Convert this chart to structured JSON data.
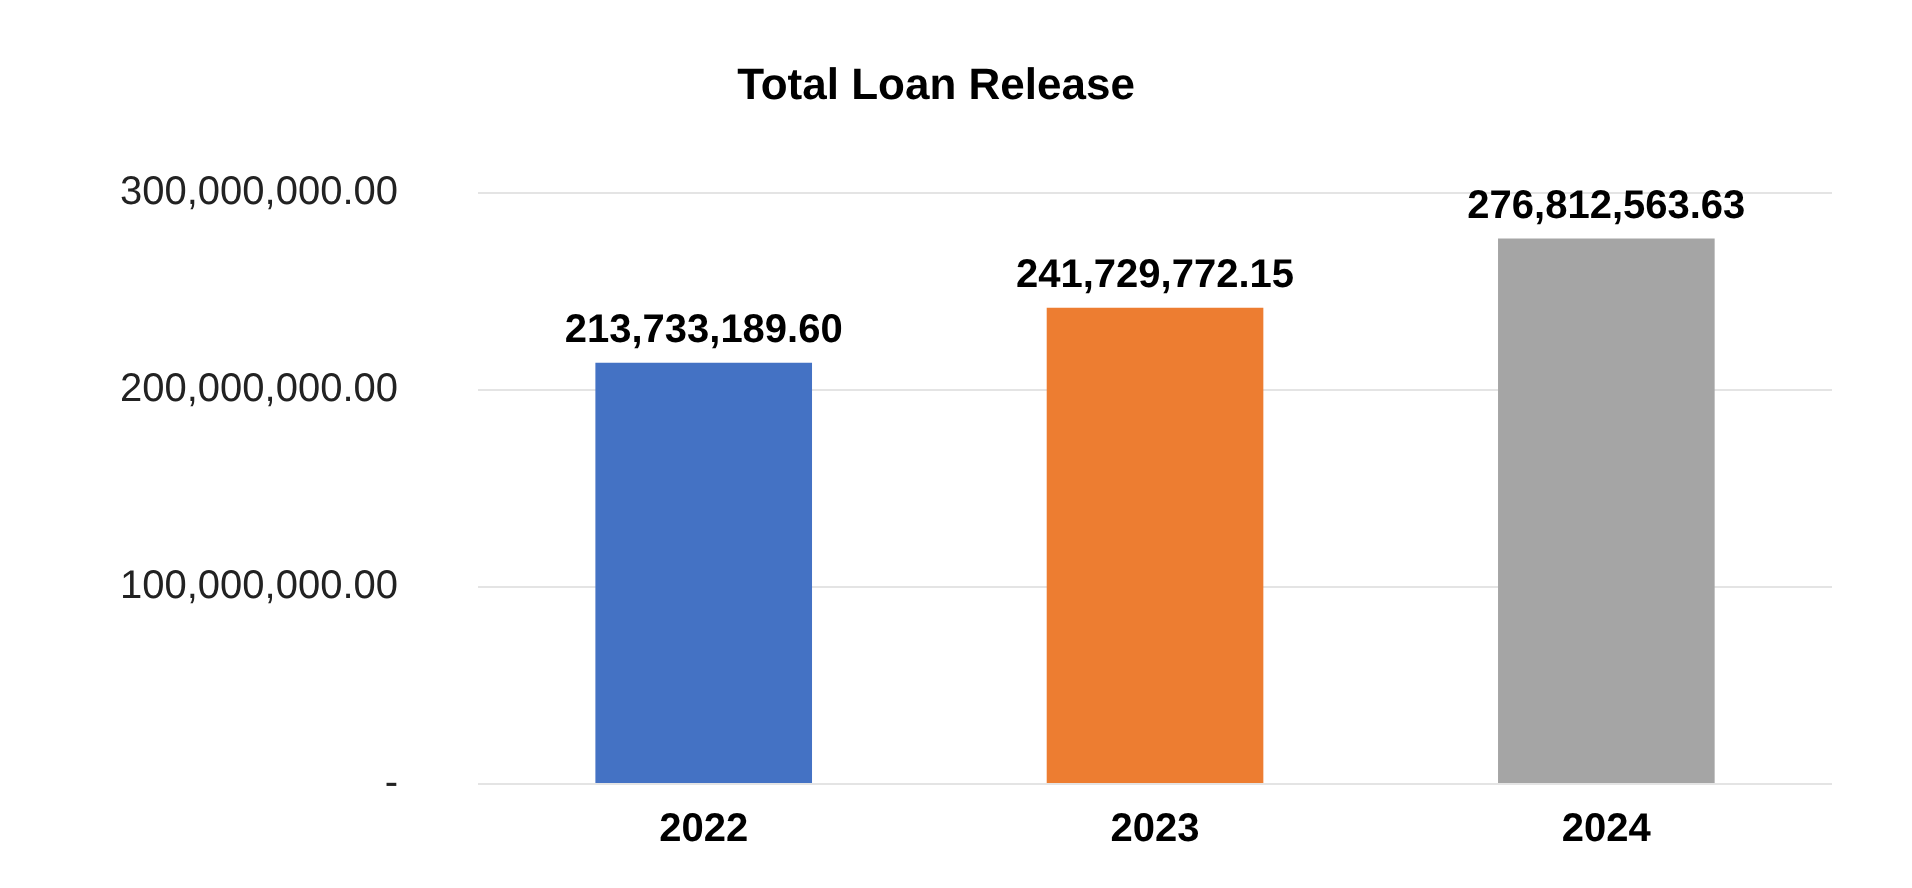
{
  "chart_data": {
    "type": "bar",
    "title": "Total Loan Release",
    "categories": [
      "2022",
      "2023",
      "2024"
    ],
    "values": [
      213733189.6,
      241729772.15,
      276812563.63
    ],
    "colors": [
      "#4472c4",
      "#ed7d31",
      "#a5a5a5"
    ],
    "value_labels": [
      "213,733,189.60",
      "241,729,772.15",
      "276,812,563.63"
    ],
    "ylim": [
      0,
      300000000
    ],
    "yticks": [
      {
        "value": 0,
        "label": "-"
      },
      {
        "value": 100000000,
        "label": "100,000,000.00"
      },
      {
        "value": 200000000,
        "label": "200,000,000.00"
      },
      {
        "value": 300000000,
        "label": "300,000,000.00"
      }
    ],
    "grid": "y",
    "legend": false
  }
}
